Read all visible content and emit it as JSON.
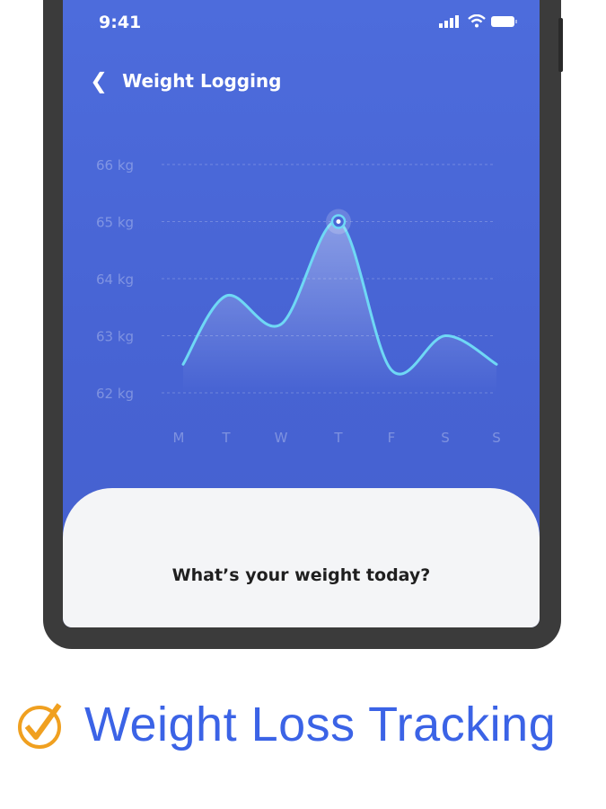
{
  "status_bar": {
    "time": "9:41",
    "icons": [
      "signal-icon",
      "wifi-icon",
      "battery-icon"
    ]
  },
  "header": {
    "back_icon": "chevron-left-icon",
    "title": "Weight Logging"
  },
  "chart_data": {
    "type": "area",
    "y_ticks": [
      "66 kg",
      "65 kg",
      "64 kg",
      "63 kg",
      "62 kg"
    ],
    "ylim": [
      62,
      66
    ],
    "categories": [
      "M",
      "T",
      "W",
      "T",
      "F",
      "S",
      "S"
    ],
    "series": [
      {
        "values": [
          62.5,
          63.7,
          63.2,
          65.0,
          62.4,
          63.0,
          62.5
        ]
      }
    ],
    "highlighted_index": 3,
    "grid": true,
    "line_color": "#6fd8f5"
  },
  "card": {
    "question": "What’s your weight today?"
  },
  "caption": {
    "icon": "check-circle-icon",
    "text": "Weight Loss Tracking",
    "color": "#3b63e6",
    "icon_color": "#f0a020"
  }
}
